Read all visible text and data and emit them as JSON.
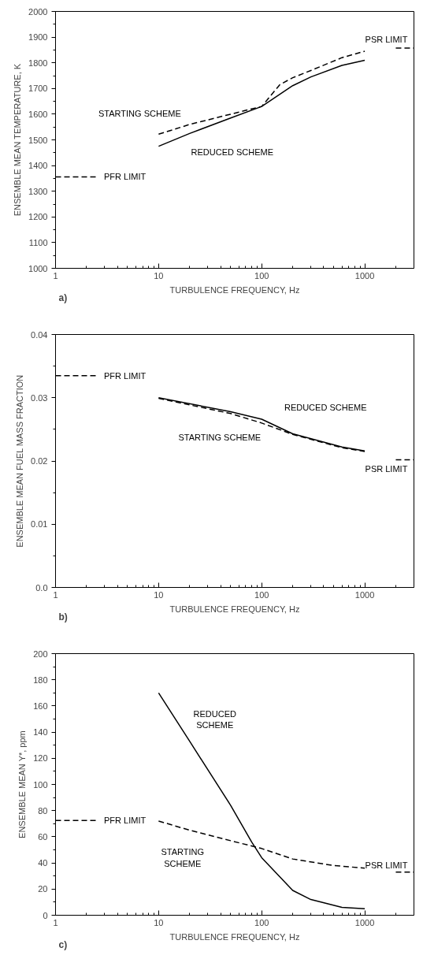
{
  "chart_data": [
    {
      "type": "line",
      "log": "x",
      "xlabel": "TURBULENCE FREQUENCY, Hz",
      "ylabel": "ENSEMBLE MEAN TEMPERATURE, K",
      "xlim": [
        1,
        3000
      ],
      "ylim": [
        1000,
        2000
      ],
      "xticks": [
        1,
        {
          "value": 2,
          "label": null
        },
        {
          "value": 3,
          "label": null
        },
        {
          "value": 4,
          "label": null
        },
        {
          "value": 5,
          "label": null
        },
        {
          "value": 6,
          "label": null
        },
        {
          "value": 7,
          "label": null
        },
        {
          "value": 8,
          "label": null
        },
        {
          "value": 9,
          "label": null
        },
        10,
        {
          "value": 20,
          "label": null
        },
        {
          "value": 30,
          "label": null
        },
        {
          "value": 40,
          "label": null
        },
        {
          "value": 50,
          "label": null
        },
        {
          "value": 60,
          "label": null
        },
        {
          "value": 70,
          "label": null
        },
        {
          "value": 80,
          "label": null
        },
        {
          "value": 90,
          "label": null
        },
        100,
        {
          "value": 200,
          "label": null
        },
        {
          "value": 300,
          "label": null
        },
        {
          "value": 400,
          "label": null
        },
        {
          "value": 500,
          "label": null
        },
        {
          "value": 600,
          "label": null
        },
        {
          "value": 700,
          "label": null
        },
        {
          "value": 800,
          "label": null
        },
        {
          "value": 900,
          "label": null
        },
        1000,
        {
          "value": 2000,
          "label": null
        }
      ],
      "yticks": [
        1000,
        {
          "value": 1050,
          "label": null
        },
        1100,
        {
          "value": 1150,
          "label": null
        },
        1200,
        {
          "value": 1250,
          "label": null
        },
        1300,
        {
          "value": 1350,
          "label": null
        },
        1400,
        {
          "value": 1450,
          "label": null
        },
        1500,
        {
          "value": 1550,
          "label": null
        },
        1600,
        {
          "value": 1650,
          "label": null
        },
        1700,
        {
          "value": 1750,
          "label": null
        },
        1800,
        {
          "value": 1850,
          "label": null
        },
        1900,
        {
          "value": 1950,
          "label": null
        },
        2000
      ],
      "grid": false,
      "legend": false,
      "series": [
        {
          "name": "STARTING SCHEME",
          "color": "#000000",
          "line_style": "dashed",
          "x": [
            10,
            20,
            50,
            70,
            100,
            150,
            200,
            300,
            600,
            1000
          ],
          "values": [
            1522,
            1560,
            1600,
            1615,
            1630,
            1715,
            1742,
            1770,
            1820,
            1845
          ]
        },
        {
          "name": "REDUCED SCHEME",
          "color": "#000000",
          "line_style": "solid",
          "x": [
            10,
            20,
            50,
            100,
            200,
            300,
            600,
            1000
          ],
          "values": [
            1475,
            1525,
            1585,
            1630,
            1711,
            1745,
            1790,
            1810
          ]
        },
        {
          "name": "PFR LIMIT",
          "color": "#000000",
          "line_style": "dashed",
          "x": [
            1,
            2.5
          ],
          "values": [
            1356,
            1356
          ]
        },
        {
          "name": "PSR LIMIT",
          "color": "#000000",
          "line_style": "dashed",
          "x": [
            2000,
            3000
          ],
          "values": [
            1857,
            1857
          ]
        }
      ],
      "annotations": [
        "a)"
      ]
    },
    {
      "type": "line",
      "log": "x",
      "xlabel": "TURBULENCE FREQUENCY, Hz",
      "ylabel": "ENSEMBLE MEAN FUEL MASS FRACTION",
      "xlim": [
        1,
        3000
      ],
      "ylim": [
        0,
        0.04
      ],
      "xticks": [
        1,
        {
          "value": 2,
          "label": null
        },
        {
          "value": 3,
          "label": null
        },
        {
          "value": 4,
          "label": null
        },
        {
          "value": 5,
          "label": null
        },
        {
          "value": 6,
          "label": null
        },
        {
          "value": 7,
          "label": null
        },
        {
          "value": 8,
          "label": null
        },
        {
          "value": 9,
          "label": null
        },
        10,
        {
          "value": 20,
          "label": null
        },
        {
          "value": 30,
          "label": null
        },
        {
          "value": 40,
          "label": null
        },
        {
          "value": 50,
          "label": null
        },
        {
          "value": 60,
          "label": null
        },
        {
          "value": 70,
          "label": null
        },
        {
          "value": 80,
          "label": null
        },
        {
          "value": 90,
          "label": null
        },
        100,
        {
          "value": 200,
          "label": null
        },
        {
          "value": 300,
          "label": null
        },
        {
          "value": 400,
          "label": null
        },
        {
          "value": 500,
          "label": null
        },
        {
          "value": 600,
          "label": null
        },
        {
          "value": 700,
          "label": null
        },
        {
          "value": 800,
          "label": null
        },
        {
          "value": 900,
          "label": null
        },
        1000,
        {
          "value": 2000,
          "label": null
        }
      ],
      "yticks": [
        {
          "value": 0,
          "label": "0.0"
        },
        {
          "value": 0.005,
          "label": null
        },
        0.01,
        {
          "value": 0.015,
          "label": null
        },
        0.02,
        {
          "value": 0.025,
          "label": null
        },
        0.03,
        {
          "value": 0.035,
          "label": null
        },
        0.04
      ],
      "grid": false,
      "legend": false,
      "series": [
        {
          "name": "STARTING SCHEME",
          "color": "#000000",
          "line_style": "dashed",
          "x": [
            10,
            50,
            100,
            200,
            600,
            1000
          ],
          "values": [
            0.0299,
            0.0275,
            0.026,
            0.0242,
            0.0221,
            0.0215
          ]
        },
        {
          "name": "REDUCED SCHEME",
          "color": "#000000",
          "line_style": "solid",
          "x": [
            10,
            50,
            100,
            200,
            600,
            1000
          ],
          "values": [
            0.03,
            0.0278,
            0.0266,
            0.0243,
            0.0222,
            0.0216
          ]
        },
        {
          "name": "PFR LIMIT",
          "color": "#000000",
          "line_style": "dashed",
          "x": [
            1,
            2.5
          ],
          "values": [
            0.0335,
            0.0335
          ]
        },
        {
          "name": "PSR LIMIT",
          "color": "#000000",
          "line_style": "dashed",
          "x": [
            2000,
            3000
          ],
          "values": [
            0.0202,
            0.0202
          ]
        }
      ],
      "annotations": [
        "b)"
      ]
    },
    {
      "type": "line",
      "log": "x",
      "xlabel": "TURBULENCE FREQUENCY, Hz",
      "ylabel": "ENSEMBLE MEAN Y*, ppm",
      "xlim": [
        1,
        3000
      ],
      "ylim": [
        0,
        200
      ],
      "xticks": [
        1,
        {
          "value": 2,
          "label": null
        },
        {
          "value": 3,
          "label": null
        },
        {
          "value": 4,
          "label": null
        },
        {
          "value": 5,
          "label": null
        },
        {
          "value": 6,
          "label": null
        },
        {
          "value": 7,
          "label": null
        },
        {
          "value": 8,
          "label": null
        },
        {
          "value": 9,
          "label": null
        },
        10,
        {
          "value": 20,
          "label": null
        },
        {
          "value": 30,
          "label": null
        },
        {
          "value": 40,
          "label": null
        },
        {
          "value": 50,
          "label": null
        },
        {
          "value": 60,
          "label": null
        },
        {
          "value": 70,
          "label": null
        },
        {
          "value": 80,
          "label": null
        },
        {
          "value": 90,
          "label": null
        },
        100,
        {
          "value": 200,
          "label": null
        },
        {
          "value": 300,
          "label": null
        },
        {
          "value": 400,
          "label": null
        },
        {
          "value": 500,
          "label": null
        },
        {
          "value": 600,
          "label": null
        },
        {
          "value": 700,
          "label": null
        },
        {
          "value": 800,
          "label": null
        },
        {
          "value": 900,
          "label": null
        },
        1000,
        {
          "value": 2000,
          "label": null
        }
      ],
      "yticks": [
        0,
        {
          "value": 10,
          "label": null
        },
        20,
        {
          "value": 30,
          "label": null
        },
        40,
        {
          "value": 50,
          "label": null
        },
        60,
        {
          "value": 70,
          "label": null
        },
        80,
        {
          "value": 90,
          "label": null
        },
        100,
        {
          "value": 110,
          "label": null
        },
        120,
        {
          "value": 130,
          "label": null
        },
        140,
        {
          "value": 150,
          "label": null
        },
        160,
        {
          "value": 170,
          "label": null
        },
        180,
        {
          "value": 190,
          "label": null
        },
        200
      ],
      "grid": false,
      "legend": false,
      "series": [
        {
          "name": "REDUCED\nSCHEME",
          "color": "#000000",
          "line_style": "solid",
          "x": [
            10,
            20,
            50,
            80,
            100,
            200,
            300,
            600,
            1000
          ],
          "values": [
            170,
            133,
            84,
            56,
            44,
            19,
            12,
            6,
            5
          ]
        },
        {
          "name": "STARTING\nSCHEME",
          "color": "#000000",
          "line_style": "dashed",
          "x": [
            10,
            20,
            50,
            100,
            200,
            500,
            1000
          ],
          "values": [
            72,
            65,
            57,
            51,
            43,
            38,
            36
          ]
        },
        {
          "name": "PFR LIMIT",
          "color": "#000000",
          "line_style": "dashed",
          "x": [
            1,
            2.5
          ],
          "values": [
            72.5,
            72.5
          ]
        },
        {
          "name": "PSR LIMIT",
          "color": "#000000",
          "line_style": "dashed",
          "x": [
            2000,
            3000
          ],
          "values": [
            33,
            33
          ]
        }
      ],
      "annotations": [
        "c)"
      ]
    }
  ]
}
